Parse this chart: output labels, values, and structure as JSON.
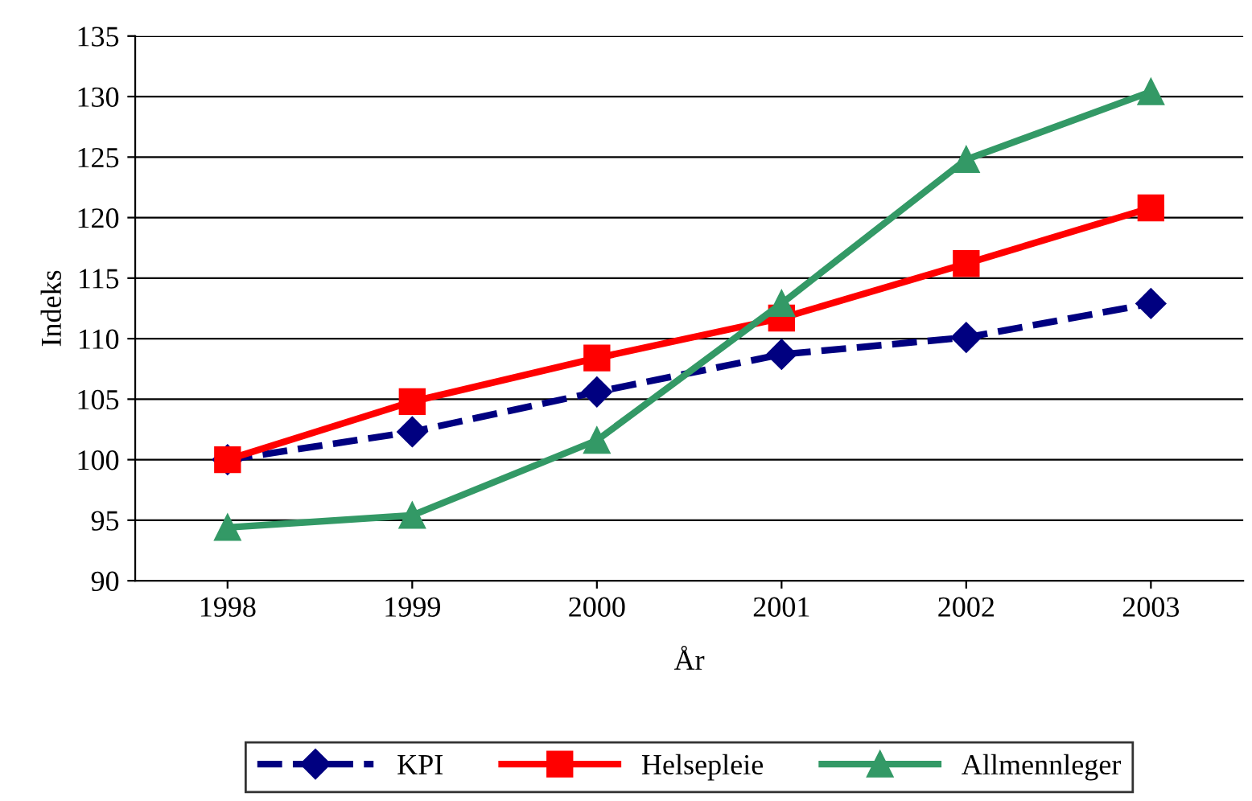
{
  "chart_data": {
    "type": "line",
    "xlabel": "År",
    "ylabel": "Indeks",
    "categories": [
      "1998",
      "1999",
      "2000",
      "2001",
      "2002",
      "2003"
    ],
    "series": [
      {
        "name": "KPI",
        "color": "#000080",
        "marker": "diamond",
        "line_style": "dashed",
        "values": [
          100,
          102.3,
          105.6,
          108.7,
          110.1,
          112.9
        ]
      },
      {
        "name": "Helsepleie",
        "color": "#ff0000",
        "marker": "square",
        "line_style": "solid",
        "values": [
          100,
          104.8,
          108.4,
          111.7,
          116.2,
          120.8
        ]
      },
      {
        "name": "Allmennleger",
        "color": "#339966",
        "marker": "triangle",
        "line_style": "solid",
        "values": [
          94.4,
          95.4,
          101.6,
          112.9,
          124.8,
          130.4
        ]
      }
    ],
    "ylim": [
      90,
      135
    ],
    "yticks": [
      90,
      95,
      100,
      105,
      110,
      115,
      120,
      125,
      130,
      135
    ],
    "grid": "y",
    "legend": "bottom"
  }
}
